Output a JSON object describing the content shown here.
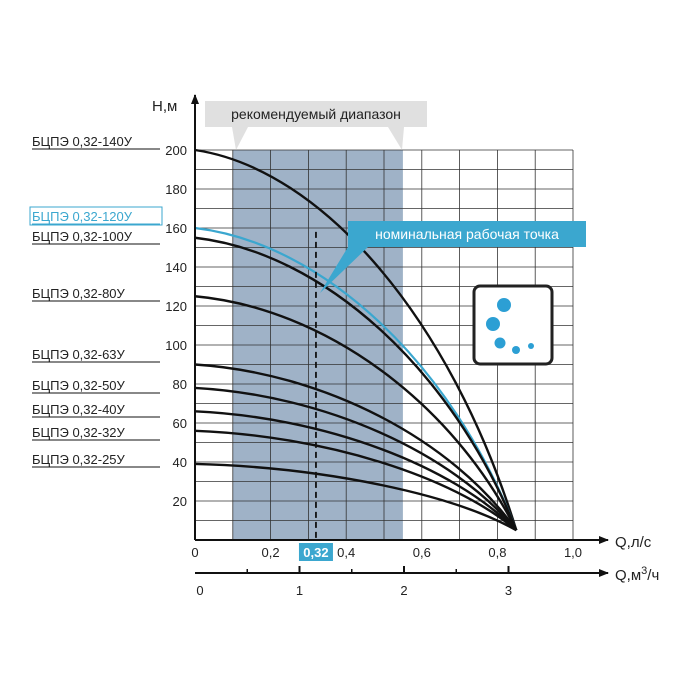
{
  "chart_data": {
    "type": "line",
    "y_axis_label": "Н,м",
    "x_axis_label": "Q,л/с",
    "x2_axis_label": "Q,м",
    "x2_axis_label_sup": "3",
    "x2_axis_label_suffix": "/ч",
    "ylim": [
      0,
      210
    ],
    "xlim": [
      0,
      1.0
    ],
    "y_ticks": [
      "20",
      "40",
      "60",
      "80",
      "100",
      "120",
      "140",
      "160",
      "180",
      "200"
    ],
    "x_ticks": [
      {
        "value": 0,
        "label": "0"
      },
      {
        "value": 0.2,
        "label": "0,2"
      },
      {
        "value": 0.4,
        "label": "0,4"
      },
      {
        "value": 0.6,
        "label": "0,6"
      },
      {
        "value": 0.8,
        "label": "0,8"
      },
      {
        "value": 1.0,
        "label": "1,0"
      }
    ],
    "x2_ticks": [
      {
        "value": 0,
        "label": "0"
      },
      {
        "value": 1,
        "label": "1"
      },
      {
        "value": 2,
        "label": "2"
      },
      {
        "value": 3,
        "label": "3"
      }
    ],
    "highlight_tick": {
      "value": 0.32,
      "label": "0,32"
    },
    "recommended_range": {
      "label": "рекомендуемый диапазон",
      "x_from": 0.1,
      "x_to": 0.55
    },
    "nominal_point": {
      "label": "номинальная рабочая точка",
      "x": 0.32
    },
    "end_point": {
      "x": 0.85,
      "y": 5
    },
    "series": [
      {
        "name": "БЦПЭ 0,32-140У",
        "h0": 200,
        "color": "#111111",
        "highlight": false
      },
      {
        "name": "БЦПЭ 0,32-120У",
        "h0": 160,
        "color": "#3ba7cf",
        "highlight": true
      },
      {
        "name": "БЦПЭ 0,32-100У",
        "h0": 155,
        "color": "#111111",
        "highlight": false
      },
      {
        "name": "БЦПЭ 0,32-80У",
        "h0": 125,
        "color": "#111111",
        "highlight": false
      },
      {
        "name": "БЦПЭ 0,32-63У",
        "h0": 90,
        "color": "#111111",
        "highlight": false
      },
      {
        "name": "БЦПЭ 0,32-50У",
        "h0": 78,
        "color": "#111111",
        "highlight": false
      },
      {
        "name": "БЦПЭ 0,32-40У",
        "h0": 66,
        "color": "#111111",
        "highlight": false
      },
      {
        "name": "БЦПЭ 0,32-32У",
        "h0": 56,
        "color": "#111111",
        "highlight": false
      },
      {
        "name": "БЦПЭ 0,32-25У",
        "h0": 39,
        "color": "#111111",
        "highlight": false
      }
    ],
    "colors": {
      "accent": "#3ba7cf",
      "range_fill": "#8ea5bd",
      "grid": "#333333"
    },
    "grid": true,
    "icon": "bubbles-icon"
  }
}
